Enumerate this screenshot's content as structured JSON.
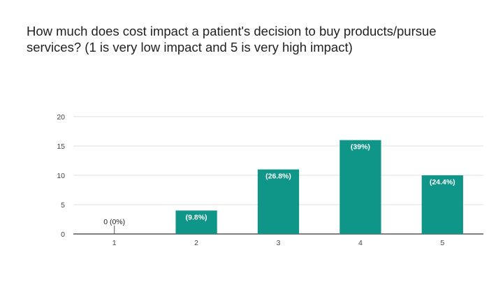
{
  "question": "How much does cost impact a patient's decision to buy products/pursue services? (1 is very low impact and 5 is very high impact)",
  "chart_data": {
    "type": "bar",
    "title": "How much does cost impact a patient's decision to buy products/pursue services? (1 is very low impact and 5 is very high impact)",
    "categories": [
      "1",
      "2",
      "3",
      "4",
      "5"
    ],
    "values": [
      0,
      4,
      11,
      16,
      10
    ],
    "data_labels": [
      "0 (0%)",
      "(9.8%)",
      "(26.8%)",
      "(39%)",
      "(24.4%)"
    ],
    "ylim": [
      0,
      20
    ],
    "yticks": [
      0,
      5,
      10,
      15,
      20
    ],
    "xlabel": "",
    "ylabel": "",
    "grid": true,
    "legend": "none",
    "bar_color": "#109688"
  }
}
